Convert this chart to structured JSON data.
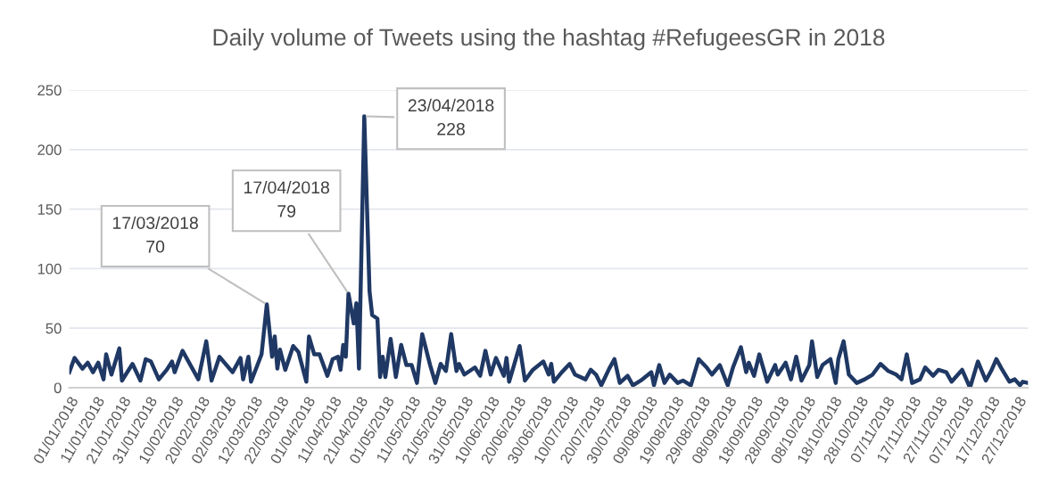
{
  "chart_data": {
    "type": "line",
    "title": "Daily volume of Tweets using the hashtag #RefugeesGR in 2018",
    "x": [
      "2018-01-01",
      "2018-01-03",
      "2018-01-06",
      "2018-01-08",
      "2018-01-10",
      "2018-01-12",
      "2018-01-14",
      "2018-01-15",
      "2018-01-17",
      "2018-01-20",
      "2018-01-21",
      "2018-01-25",
      "2018-01-28",
      "2018-01-30",
      "2018-02-01",
      "2018-02-04",
      "2018-02-07",
      "2018-02-09",
      "2018-02-10",
      "2018-02-13",
      "2018-02-19",
      "2018-02-22",
      "2018-02-24",
      "2018-02-27",
      "2018-03-04",
      "2018-03-07",
      "2018-03-08",
      "2018-03-10",
      "2018-03-11",
      "2018-03-15",
      "2018-03-17",
      "2018-03-19",
      "2018-03-20",
      "2018-03-21",
      "2018-03-22",
      "2018-03-24",
      "2018-03-27",
      "2018-03-29",
      "2018-04-01",
      "2018-04-02",
      "2018-04-04",
      "2018-04-06",
      "2018-04-09",
      "2018-04-11",
      "2018-04-13",
      "2018-04-14",
      "2018-04-15",
      "2018-04-16",
      "2018-04-17",
      "2018-04-19",
      "2018-04-20",
      "2018-04-21",
      "2018-04-23",
      "2018-04-25",
      "2018-04-26",
      "2018-04-28",
      "2018-04-29",
      "2018-04-30",
      "2018-05-01",
      "2018-05-03",
      "2018-05-05",
      "2018-05-07",
      "2018-05-09",
      "2018-05-11",
      "2018-05-13",
      "2018-05-15",
      "2018-05-18",
      "2018-05-20",
      "2018-05-22",
      "2018-05-24",
      "2018-05-26",
      "2018-05-28",
      "2018-05-29",
      "2018-05-31",
      "2018-06-04",
      "2018-06-06",
      "2018-06-08",
      "2018-06-10",
      "2018-06-12",
      "2018-06-13",
      "2018-06-15",
      "2018-06-16",
      "2018-06-17",
      "2018-06-21",
      "2018-06-23",
      "2018-06-26",
      "2018-06-30",
      "2018-07-02",
      "2018-07-03",
      "2018-07-04",
      "2018-07-07",
      "2018-07-10",
      "2018-07-12",
      "2018-07-16",
      "2018-07-18",
      "2018-07-20",
      "2018-07-22",
      "2018-07-25",
      "2018-07-27",
      "2018-07-29",
      "2018-08-01",
      "2018-08-03",
      "2018-08-06",
      "2018-08-10",
      "2018-08-11",
      "2018-08-13",
      "2018-08-15",
      "2018-08-17",
      "2018-08-20",
      "2018-08-22",
      "2018-08-25",
      "2018-08-28",
      "2018-08-31",
      "2018-09-02",
      "2018-09-05",
      "2018-09-08",
      "2018-09-10",
      "2018-09-13",
      "2018-09-15",
      "2018-09-16",
      "2018-09-18",
      "2018-09-20",
      "2018-09-23",
      "2018-09-26",
      "2018-09-27",
      "2018-09-30",
      "2018-10-02",
      "2018-10-04",
      "2018-10-06",
      "2018-10-09",
      "2018-10-10",
      "2018-10-12",
      "2018-10-14",
      "2018-10-17",
      "2018-10-19",
      "2018-10-20",
      "2018-10-22",
      "2018-10-24",
      "2018-10-27",
      "2018-10-30",
      "2018-11-02",
      "2018-11-05",
      "2018-11-08",
      "2018-11-11",
      "2018-11-13",
      "2018-11-15",
      "2018-11-17",
      "2018-11-20",
      "2018-11-22",
      "2018-11-25",
      "2018-11-27",
      "2018-11-30",
      "2018-12-02",
      "2018-12-06",
      "2018-12-09",
      "2018-12-12",
      "2018-12-15",
      "2018-12-17",
      "2018-12-19",
      "2018-12-21",
      "2018-12-24",
      "2018-12-26",
      "2018-12-28",
      "2018-12-29",
      "2018-12-31"
    ],
    "series": [
      {
        "color": "#1f3864",
        "values": [
          13,
          25,
          16,
          21,
          13,
          21,
          7,
          28,
          11,
          33,
          6,
          20,
          6,
          24,
          22,
          7,
          15,
          22,
          13,
          31,
          7,
          39,
          6,
          26,
          13,
          25,
          7,
          26,
          5,
          28,
          70,
          26,
          43,
          16,
          32,
          15,
          35,
          30,
          5,
          43,
          28,
          28,
          10,
          24,
          26,
          15,
          36,
          26,
          79,
          54,
          71,
          16,
          228,
          81,
          61,
          58,
          9,
          26,
          9,
          41,
          9,
          36,
          19,
          19,
          4,
          45,
          19,
          4,
          20,
          14,
          45,
          14,
          20,
          11,
          17,
          10,
          31,
          11,
          25,
          20,
          10,
          25,
          5,
          35,
          6,
          15,
          22,
          11,
          20,
          5,
          13,
          20,
          11,
          7,
          15,
          11,
          2,
          16,
          24,
          4,
          10,
          2,
          6,
          13,
          2,
          19,
          4,
          11,
          4,
          6,
          2,
          24,
          17,
          11,
          19,
          2,
          17,
          34,
          13,
          21,
          10,
          28,
          5,
          19,
          11,
          21,
          7,
          26,
          6,
          19,
          39,
          9,
          19,
          24,
          4,
          24,
          39,
          11,
          4,
          7,
          11,
          20,
          14,
          11,
          7,
          28,
          4,
          7,
          17,
          10,
          15,
          13,
          5,
          15,
          0,
          22,
          6,
          14,
          24,
          16,
          5,
          7,
          2,
          5,
          4
        ]
      }
    ],
    "xlim": [
      "2018-01-01",
      "2018-12-31"
    ],
    "xticks": [
      {
        "value": "2018-01-01",
        "label": "01/01/2018"
      },
      {
        "value": "2018-01-11",
        "label": "11/01/2018"
      },
      {
        "value": "2018-01-21",
        "label": "21/01/2018"
      },
      {
        "value": "2018-01-31",
        "label": "31/01/2018"
      },
      {
        "value": "2018-02-10",
        "label": "10/02/2018"
      },
      {
        "value": "2018-02-20",
        "label": "20/02/2018"
      },
      {
        "value": "2018-03-02",
        "label": "02/03/2018"
      },
      {
        "value": "2018-03-12",
        "label": "12/03/2018"
      },
      {
        "value": "2018-03-22",
        "label": "22/03/2018"
      },
      {
        "value": "2018-04-01",
        "label": "01/04/2018"
      },
      {
        "value": "2018-04-11",
        "label": "11/04/2018"
      },
      {
        "value": "2018-04-21",
        "label": "21/04/2018"
      },
      {
        "value": "2018-05-01",
        "label": "01/05/2018"
      },
      {
        "value": "2018-05-11",
        "label": "11/05/2018"
      },
      {
        "value": "2018-05-21",
        "label": "21/05/2018"
      },
      {
        "value": "2018-05-31",
        "label": "31/05/2018"
      },
      {
        "value": "2018-06-10",
        "label": "10/06/2018"
      },
      {
        "value": "2018-06-20",
        "label": "20/06/2018"
      },
      {
        "value": "2018-06-30",
        "label": "30/06/2018"
      },
      {
        "value": "2018-07-10",
        "label": "10/07/2018"
      },
      {
        "value": "2018-07-20",
        "label": "20/07/2018"
      },
      {
        "value": "2018-07-30",
        "label": "30/07/2018"
      },
      {
        "value": "2018-08-09",
        "label": "09/08/2018"
      },
      {
        "value": "2018-08-19",
        "label": "19/08/2018"
      },
      {
        "value": "2018-08-29",
        "label": "29/08/2018"
      },
      {
        "value": "2018-09-08",
        "label": "08/09/2018"
      },
      {
        "value": "2018-09-18",
        "label": "18/09/2018"
      },
      {
        "value": "2018-09-28",
        "label": "28/09/2018"
      },
      {
        "value": "2018-10-08",
        "label": "08/10/2018"
      },
      {
        "value": "2018-10-18",
        "label": "18/10/2018"
      },
      {
        "value": "2018-10-28",
        "label": "28/10/2018"
      },
      {
        "value": "2018-11-07",
        "label": "07/11/2018"
      },
      {
        "value": "2018-11-17",
        "label": "17/11/2018"
      },
      {
        "value": "2018-11-27",
        "label": "27/11/2018"
      },
      {
        "value": "2018-12-07",
        "label": "07/12/2018"
      },
      {
        "value": "2018-12-17",
        "label": "17/12/2018"
      },
      {
        "value": "2018-12-27",
        "label": "27/12/2018"
      }
    ],
    "ylim": [
      0,
      250
    ],
    "yticks": [
      0,
      50,
      100,
      150,
      200,
      250
    ],
    "grid": "y",
    "marker": "none",
    "line_style": "solid",
    "annotations": [
      {
        "text": "17/03/2018\n70",
        "x": "2018-03-17",
        "y": 70
      },
      {
        "text": "17/04/2018\n79",
        "x": "2018-04-17",
        "y": 79
      },
      {
        "text": "23/04/2018\n228",
        "x": "2018-04-23",
        "y": 228
      }
    ]
  }
}
